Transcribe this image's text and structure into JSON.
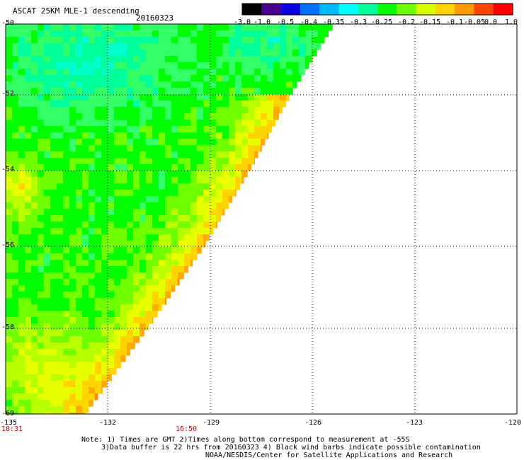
{
  "header": {
    "title": "ASCAT 25KM MLE-1 descending",
    "date": "20160323"
  },
  "colorbar": {
    "tick_labels": [
      "-3.0",
      "-1.0",
      "-0.5",
      "-0.4",
      "-0.35",
      "-0.3",
      "-0.25",
      "-0.2",
      "-0.15",
      "-0.1",
      "-0.05",
      "0.0",
      "1.0"
    ],
    "colors": [
      "#000000",
      "#4b0090",
      "#0a00e6",
      "#0070ff",
      "#00b8ff",
      "#00ffff",
      "#00ff9a",
      "#00ff00",
      "#70ff00",
      "#d9ff00",
      "#ffd400",
      "#ff9a00",
      "#ff4400",
      "#ff0000"
    ]
  },
  "map": {
    "lat_labels": [
      "-50",
      "-52",
      "-54",
      "-56",
      "-58",
      "-60"
    ],
    "lon_labels": [
      "-135",
      "-132",
      "-129",
      "-126",
      "-123",
      "-120"
    ],
    "lat_range": [
      -60,
      -50
    ],
    "lon_range": [
      -135,
      -120
    ],
    "grid": true
  },
  "times": {
    "left": "18:31",
    "mid": "16:50"
  },
  "notes": {
    "line1": "Note: 1) Times are GMT 2)Times along bottom correspond to measurement at -55S",
    "line2": "3)Data buffer is 22 hrs from 20160323 4) Black wind barbs indicate possible contamination",
    "line3": "NOAA/NESDIS/Center for Satellite Applications and Research"
  }
}
